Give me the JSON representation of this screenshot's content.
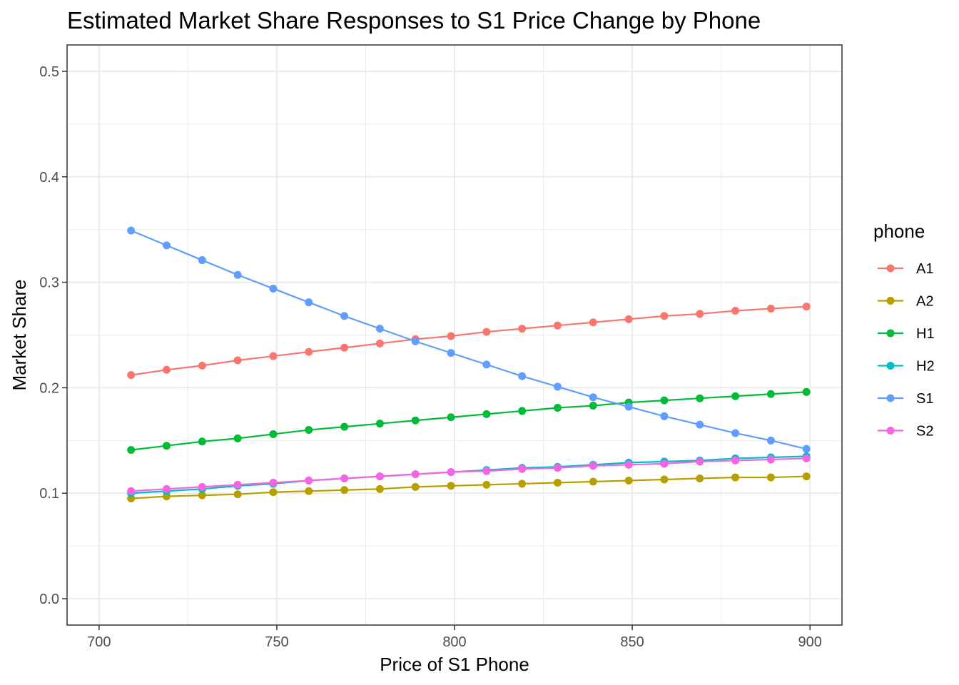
{
  "chart_data": {
    "type": "line",
    "title": "Estimated Market Share Responses to S1 Price Change by Phone",
    "xlabel": "Price of S1 Phone",
    "ylabel": "Market Share",
    "xlim": [
      691,
      909
    ],
    "ylim": [
      -0.025,
      0.525
    ],
    "x_major_ticks": [
      700,
      750,
      800,
      850,
      900
    ],
    "x_minor_ticks": [
      725,
      775,
      825,
      875
    ],
    "y_major_ticks": [
      0.0,
      0.1,
      0.2,
      0.3,
      0.4,
      0.5
    ],
    "y_minor_ticks": [
      0.05,
      0.15,
      0.25,
      0.35,
      0.45
    ],
    "x_tick_labels": [
      "700",
      "750",
      "800",
      "850",
      "900"
    ],
    "y_tick_labels": [
      "0.0",
      "0.1",
      "0.2",
      "0.3",
      "0.4",
      "0.5"
    ],
    "grid": true,
    "legend": {
      "title": "phone",
      "position": "right"
    },
    "x": [
      709,
      719,
      729,
      739,
      749,
      759,
      769,
      779,
      789,
      799,
      809,
      819,
      829,
      839,
      849,
      859,
      869,
      879,
      889,
      899
    ],
    "series": [
      {
        "name": "A1",
        "color": "#f8766d",
        "values": [
          0.212,
          0.217,
          0.221,
          0.226,
          0.23,
          0.234,
          0.238,
          0.242,
          0.246,
          0.249,
          0.253,
          0.256,
          0.259,
          0.262,
          0.265,
          0.268,
          0.27,
          0.273,
          0.275,
          0.277
        ]
      },
      {
        "name": "A2",
        "color": "#b79f00",
        "values": [
          0.095,
          0.097,
          0.098,
          0.099,
          0.101,
          0.102,
          0.103,
          0.104,
          0.106,
          0.107,
          0.108,
          0.109,
          0.11,
          0.111,
          0.112,
          0.113,
          0.114,
          0.115,
          0.115,
          0.116
        ]
      },
      {
        "name": "H1",
        "color": "#00ba38",
        "values": [
          0.141,
          0.145,
          0.149,
          0.152,
          0.156,
          0.16,
          0.163,
          0.166,
          0.169,
          0.172,
          0.175,
          0.178,
          0.181,
          0.183,
          0.186,
          0.188,
          0.19,
          0.192,
          0.194,
          0.196
        ]
      },
      {
        "name": "H2",
        "color": "#00bfc4",
        "values": [
          0.1,
          0.102,
          0.104,
          0.107,
          0.109,
          0.112,
          0.114,
          0.116,
          0.118,
          0.12,
          0.122,
          0.124,
          0.125,
          0.127,
          0.129,
          0.13,
          0.131,
          0.133,
          0.134,
          0.135
        ]
      },
      {
        "name": "S1",
        "color": "#619cff",
        "values": [
          0.349,
          0.335,
          0.321,
          0.307,
          0.294,
          0.281,
          0.268,
          0.256,
          0.244,
          0.233,
          0.222,
          0.211,
          0.201,
          0.191,
          0.182,
          0.173,
          0.165,
          0.157,
          0.15,
          0.142
        ]
      },
      {
        "name": "S2",
        "color": "#f564e3",
        "values": [
          0.102,
          0.104,
          0.106,
          0.108,
          0.11,
          0.112,
          0.114,
          0.116,
          0.118,
          0.12,
          0.121,
          0.123,
          0.124,
          0.126,
          0.127,
          0.128,
          0.13,
          0.131,
          0.132,
          0.133
        ]
      }
    ]
  }
}
